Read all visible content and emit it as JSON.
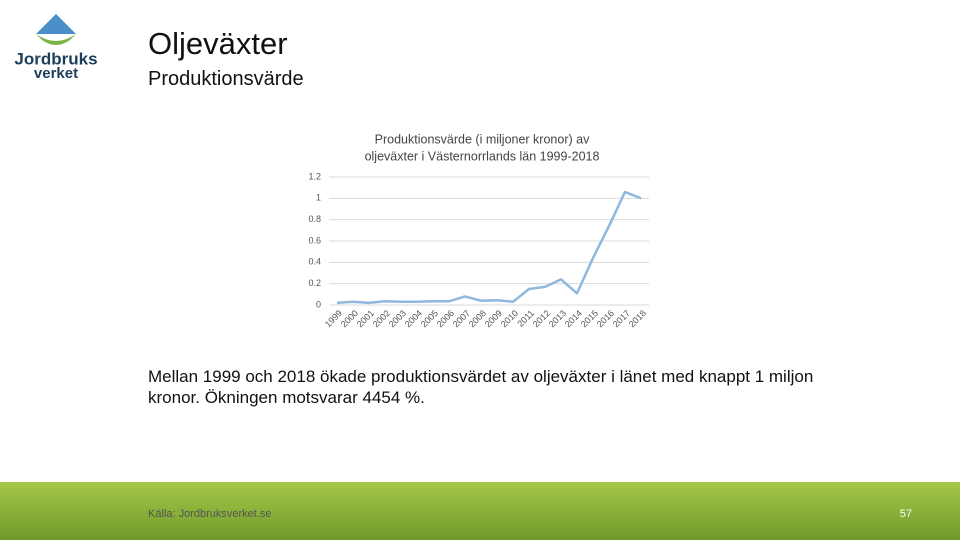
{
  "logo": {
    "line1": "Jordbruks",
    "line2": "verket"
  },
  "header": {
    "title": "Oljeväxter",
    "subtitle": "Produktionsvärde"
  },
  "chart_data": {
    "type": "line",
    "title": [
      "Produktionsvärde (i miljoner kronor) av",
      "oljeväxter i Västernorrlands län 1999-2018"
    ],
    "categories": [
      "1999",
      "2000",
      "2001",
      "2002",
      "2003",
      "2004",
      "2005",
      "2006",
      "2007",
      "2008",
      "2009",
      "2010",
      "2011",
      "2012",
      "2013",
      "2014",
      "2015",
      "2016",
      "2017",
      "2018"
    ],
    "values": [
      0.02,
      0.03,
      0.02,
      0.035,
      0.03,
      0.03,
      0.035,
      0.035,
      0.08,
      0.04,
      0.045,
      0.03,
      0.15,
      0.17,
      0.24,
      0.11,
      0.44,
      0.74,
      1.06,
      1.0
    ],
    "color": "#8fb8de",
    "ylim": [
      0,
      1.2
    ],
    "yticks": [
      0,
      0.2,
      0.4,
      0.6,
      0.8,
      1,
      1.2
    ],
    "grid": true
  },
  "body": "Mellan 1999 och 2018 ökade produktionsvärdet av oljeväxter i länet med knappt 1 miljon kronor. Ökningen motsvarar 4454 %.",
  "footer": {
    "source": "Källa: Jordbruksverket.se",
    "page": "57"
  }
}
